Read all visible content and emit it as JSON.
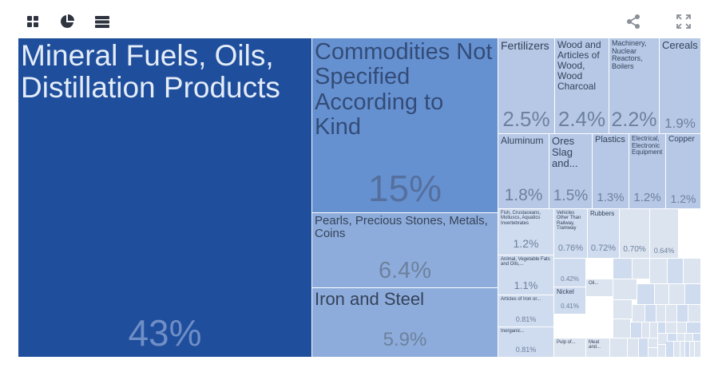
{
  "toolbar": {
    "left_icons": [
      "grid-view-icon",
      "pie-chart-icon",
      "list-view-icon"
    ],
    "right_icons": [
      "share-icon",
      "fullscreen-icon"
    ]
  },
  "colors": {
    "dark": "#1f4e9c",
    "mid": "#6691d1",
    "light1": "#8eacdb",
    "light2": "#b6c8e6",
    "light3": "#cfdbee",
    "light4": "#dce4ef",
    "border": "#ffffff"
  },
  "chart_data": {
    "type": "treemap",
    "unit": "%",
    "items": [
      {
        "label": "Mineral Fuels, Oils, Distillation Products",
        "value": 43,
        "display": "43%"
      },
      {
        "label": "Commodities Not Specified According to Kind",
        "value": 15,
        "display": "15%"
      },
      {
        "label": "Pearls, Precious Stones, Metals, Coins",
        "value": 6.4,
        "display": "6.4%"
      },
      {
        "label": "Iron and Steel",
        "value": 5.9,
        "display": "5.9%"
      },
      {
        "label": "Fertilizers",
        "value": 2.5,
        "display": "2.5%"
      },
      {
        "label": "Wood and Articles of Wood, Wood Charcoal",
        "value": 2.4,
        "display": "2.4%"
      },
      {
        "label": "Machinery, Nuclear Reactors, Boilers",
        "value": 2.2,
        "display": "2.2%"
      },
      {
        "label": "Cereals",
        "value": 1.9,
        "display": "1.9%"
      },
      {
        "label": "Aluminum",
        "value": 1.8,
        "display": "1.8%"
      },
      {
        "label": "Ores Slag and...",
        "value": 1.5,
        "display": "1.5%"
      },
      {
        "label": "Plastics",
        "value": 1.3,
        "display": "1.3%"
      },
      {
        "label": "Electrical, Electronic Equipment",
        "value": 1.2,
        "display": "1.2%"
      },
      {
        "label": "Copper",
        "value": 1.2,
        "display": "1.2%"
      },
      {
        "label": "Fish, Crustaceans, Molluscs, Aquatics Invertebrates",
        "value": 1.2,
        "display": "1.2%"
      },
      {
        "label": "Vehicles Other Than Railway, Tramway",
        "value": 0.76,
        "display": "0.76%"
      },
      {
        "label": "Rubbers",
        "value": 0.72,
        "display": "0.72%"
      },
      {
        "label": "",
        "value": 0.7,
        "display": "0.70%"
      },
      {
        "label": "",
        "value": 0.64,
        "display": "0.64%"
      },
      {
        "label": "Animal, Vegetable Fats and Oils,...",
        "value": 1.1,
        "display": "1.1%"
      },
      {
        "label": "",
        "value": 0.42,
        "display": "0.42%"
      },
      {
        "label": "Oil...",
        "value": 0.4,
        "display": ""
      },
      {
        "label": "Nickel",
        "value": 0.41,
        "display": "0.41%"
      },
      {
        "label": "Articles of Iron or...",
        "value": 0.81,
        "display": "0.81%"
      },
      {
        "label": "Inorganic...",
        "value": 0.81,
        "display": "0.81%"
      },
      {
        "label": "Pulp of...",
        "value": 0.35,
        "display": ""
      },
      {
        "label": "Meat and...",
        "value": 0.3,
        "display": ""
      }
    ]
  }
}
